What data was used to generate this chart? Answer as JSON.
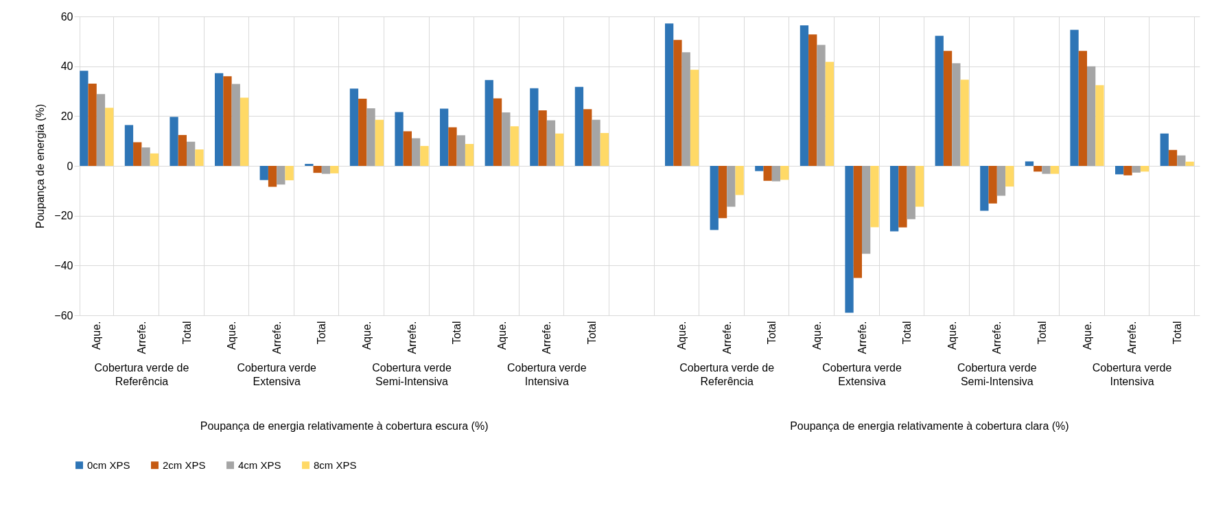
{
  "chart_data": {
    "type": "bar",
    "ylabel": "Poupança de energia (%)",
    "categories": [
      "Aque.",
      "Arrefe.",
      "Total",
      "Aque.",
      "Arrefe.",
      "Total",
      "Aque.",
      "Arrefe.",
      "Total",
      "Aque.",
      "Arrefe.",
      "Total",
      null,
      "Aque.",
      "Arrefe.",
      "Total",
      "Aque.",
      "Arrefe.",
      "Total",
      "Aque.",
      "Arrefe.",
      "Total",
      "Aque.",
      "Arrefe.",
      "Total"
    ],
    "series": [
      {
        "name": "0cm XPS",
        "color": "#2e75b6",
        "values": [
          38.2,
          16.4,
          19.7,
          37.2,
          -5.7,
          0.8,
          31,
          21.6,
          23,
          34.5,
          31.2,
          31.7,
          null,
          57.2,
          -25.7,
          -2.1,
          56.4,
          -59,
          -26.3,
          52.2,
          -18,
          1.8,
          54.6,
          -3.4,
          13
        ]
      },
      {
        "name": "2cm XPS",
        "color": "#c55a11",
        "values": [
          33,
          9.5,
          12.4,
          36,
          -8.4,
          -2.8,
          27,
          13.9,
          15.5,
          27.1,
          22.3,
          22.8,
          null,
          50.6,
          -21,
          -6,
          52.8,
          -45,
          -24.7,
          46.2,
          -15.1,
          -2.3,
          46.2,
          -3.8,
          6.4
        ]
      },
      {
        "name": "4cm XPS",
        "color": "#a5a5a5",
        "values": [
          28.8,
          7.4,
          9.7,
          32.9,
          -7.5,
          -3.2,
          23.1,
          11.1,
          12.3,
          21.5,
          18.3,
          18.5,
          null,
          45.6,
          -16.4,
          -6.2,
          48.6,
          -35.3,
          -21.4,
          41.2,
          -12,
          -3.2,
          40,
          -2.7,
          4.2
        ]
      },
      {
        "name": "8cm XPS",
        "color": "#ffd966",
        "values": [
          23.3,
          5,
          6.6,
          27.4,
          -5.8,
          -3,
          18.5,
          8,
          8.8,
          15.9,
          13,
          13.2,
          null,
          38.6,
          -11.7,
          -5.6,
          41.8,
          -24.6,
          -16.4,
          34.6,
          -8.3,
          -3.2,
          32.4,
          -2.3,
          1.7
        ]
      }
    ],
    "ylim": [
      -60,
      60
    ],
    "yticks": [
      -60,
      -40,
      -20,
      0,
      20,
      40,
      60
    ],
    "grid": true,
    "legend": "bottom",
    "annotations": [
      "Cobertura verde de Referência",
      "Cobertura verde Extensiva",
      "Cobertura verde Semi-Intensiva",
      "Cobertura verde Intensiva",
      "Cobertura verde de Referência",
      "Cobertura verde Extensiva",
      "Cobertura verde Semi-Intensiva",
      "Cobertura verde Intensiva",
      "Poupança de energia relativamente à cobertura escura (%)",
      "Poupança de energia relativamente à cobertura clara (%)"
    ]
  }
}
